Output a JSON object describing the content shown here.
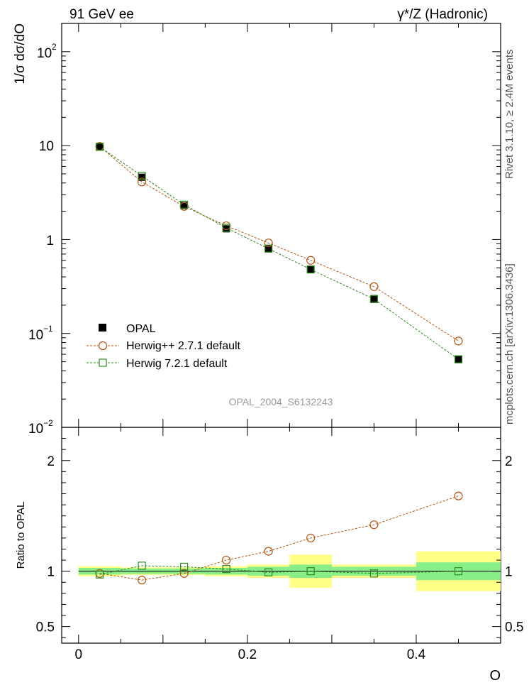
{
  "header": {
    "left_title": "91 GeV ee",
    "right_title": "γ*/Z (Hadronic)"
  },
  "side_labels": {
    "rivet": "Rivet 3.1.10, ≥ 2.4M events",
    "mcplots": "mcplots.cern.ch [arXiv:1306.3436]"
  },
  "watermark": "OPAL_2004_S6132243",
  "colors": {
    "data": "#000000",
    "herwigpp": "#b8510d",
    "herwig7": "#2e8b1e",
    "band_inner": "#88ee88",
    "band_outer": "#ffff88"
  },
  "chart_data": [
    {
      "type": "scatter",
      "panel": "main",
      "ylabel": "1/σ dσ/dO",
      "yscale": "log",
      "ylim": [
        0.01,
        200
      ],
      "xlim": [
        -0.02,
        0.5
      ],
      "ytick_labels": {
        "main_100": "10",
        "main_100_exp": "2",
        "ten": "10",
        "one": "1",
        "tenth": "10",
        "tenth_exp": "−1",
        "hundredth": "10",
        "hundredth_exp": "−2"
      },
      "x": [
        0.025,
        0.075,
        0.125,
        0.175,
        0.225,
        0.275,
        0.35,
        0.45
      ],
      "series": [
        {
          "name": "OPAL",
          "marker": "filled-square",
          "values": [
            9.8,
            4.6,
            2.3,
            1.3,
            0.8,
            0.48,
            0.235,
            0.053
          ]
        },
        {
          "name": "Herwig++ 2.7.1 default",
          "marker": "open-circle",
          "line": "dashed",
          "values": [
            9.8,
            4.1,
            2.25,
            1.4,
            0.92,
            0.6,
            0.315,
            0.083
          ]
        },
        {
          "name": "Herwig 7.2.1 default",
          "marker": "open-square",
          "line": "dashed",
          "values": [
            9.7,
            4.75,
            2.35,
            1.33,
            0.8,
            0.48,
            0.232,
            0.053
          ]
        }
      ],
      "legend": [
        "OPAL",
        "Herwig++ 2.7.1 default",
        "Herwig 7.2.1 default"
      ],
      "legend_position": "bottom-left"
    },
    {
      "type": "scatter",
      "panel": "ratio",
      "ylabel": "Ratio to OPAL",
      "xlabel": "O",
      "ylim": [
        0.35,
        2.3
      ],
      "xlim": [
        -0.02,
        0.5
      ],
      "xtick_labels": [
        "0",
        "0.2",
        "0.4"
      ],
      "xtick_values": [
        0,
        0.2,
        0.4
      ],
      "ytick_labels": [
        "0.5",
        "1",
        "2"
      ],
      "ytick_values": [
        0.5,
        1,
        2
      ],
      "bins": [
        [
          0.0,
          0.05
        ],
        [
          0.05,
          0.1
        ],
        [
          0.1,
          0.15
        ],
        [
          0.15,
          0.2
        ],
        [
          0.2,
          0.25
        ],
        [
          0.25,
          0.3
        ],
        [
          0.3,
          0.4
        ],
        [
          0.4,
          0.5
        ]
      ],
      "band_inner": [
        0.03,
        0.025,
        0.025,
        0.03,
        0.04,
        0.06,
        0.04,
        0.08
      ],
      "band_outer": [
        0.045,
        0.035,
        0.035,
        0.045,
        0.06,
        0.15,
        0.06,
        0.18
      ],
      "x": [
        0.025,
        0.075,
        0.125,
        0.175,
        0.225,
        0.275,
        0.35,
        0.45
      ],
      "series": [
        {
          "name": "Herwig++ 2.7.1 default",
          "values": [
            0.98,
            0.92,
            0.98,
            1.1,
            1.18,
            1.3,
            1.42,
            1.68
          ]
        },
        {
          "name": "Herwig 7.2.1 default",
          "values": [
            0.97,
            1.05,
            1.04,
            1.02,
            0.99,
            1.0,
            0.98,
            1.0
          ]
        }
      ]
    }
  ]
}
